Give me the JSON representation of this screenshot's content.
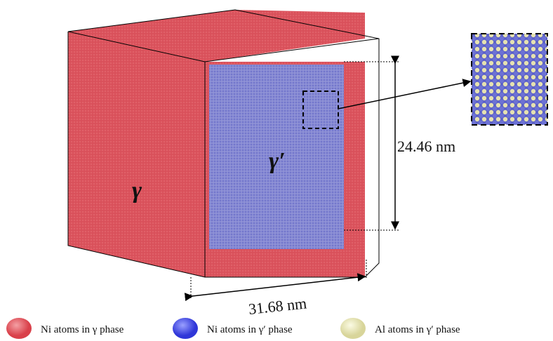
{
  "labels": {
    "gamma": "γ",
    "gamma_prime": "γ′",
    "height": "24.46 nm",
    "width": "31.68 nm"
  },
  "legend": [
    "Ni atoms in γ phase",
    "Ni atoms in γ′ phase",
    "Al atoms in γ′ phase"
  ]
}
